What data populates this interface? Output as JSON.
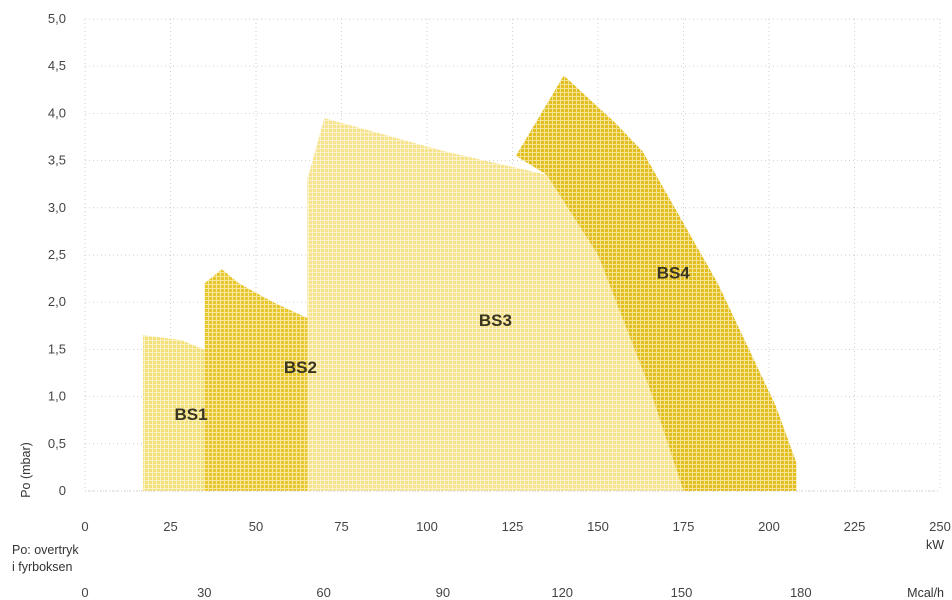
{
  "chart_data": {
    "type": "area",
    "ylabel": "Po (mbar)",
    "x_unit": "kW",
    "x2_unit": "Mcal/h",
    "x_ticks": [
      "0",
      "25",
      "50",
      "75",
      "100",
      "125",
      "150",
      "175",
      "200",
      "225",
      "250"
    ],
    "x2_ticks": [
      "0",
      "30",
      "60",
      "90",
      "120",
      "150",
      "180"
    ],
    "y_ticks": [
      "0",
      "0,5",
      "1,0",
      "1,5",
      "2,0",
      "2,5",
      "3,0",
      "3,5",
      "4,0",
      "4,5",
      "5,0"
    ],
    "xlim": [
      0,
      250
    ],
    "ylim": [
      0,
      5.0
    ],
    "note_line1": "Po: overtryk",
    "note_line2": "i fyrboksen",
    "grid": true,
    "series": [
      {
        "name": "BS1",
        "color": "#f4e07a",
        "points": [
          [
            17,
            0
          ],
          [
            17,
            1.65
          ],
          [
            28,
            1.6
          ],
          [
            38,
            1.45
          ],
          [
            43,
            1.0
          ],
          [
            48,
            0.35
          ],
          [
            50,
            0
          ]
        ]
      },
      {
        "name": "BS2",
        "color": "#e8c72c",
        "points": [
          [
            35,
            0
          ],
          [
            35,
            2.2
          ],
          [
            40,
            2.35
          ],
          [
            45,
            2.2
          ],
          [
            55,
            2.0
          ],
          [
            67,
            1.8
          ],
          [
            72,
            1.3
          ],
          [
            78,
            0.5
          ],
          [
            80,
            0
          ]
        ]
      },
      {
        "name": "BS3",
        "color": "#f6e38e",
        "points": [
          [
            65,
            0
          ],
          [
            65,
            3.3
          ],
          [
            70,
            3.95
          ],
          [
            80,
            3.85
          ],
          [
            105,
            3.6
          ],
          [
            135,
            3.35
          ],
          [
            150,
            2.5
          ],
          [
            165,
            1.1
          ],
          [
            175,
            0
          ]
        ]
      },
      {
        "name": "BS4",
        "color": "#e3bf1e",
        "points": [
          [
            126,
            3.55
          ],
          [
            140,
            4.4
          ],
          [
            155,
            3.9
          ],
          [
            163,
            3.6
          ],
          [
            185,
            2.2
          ],
          [
            202,
            0.9
          ],
          [
            208,
            0.3
          ],
          [
            208,
            0
          ],
          [
            175,
            0
          ],
          [
            165,
            1.1
          ],
          [
            150,
            2.5
          ],
          [
            135,
            3.35
          ]
        ]
      }
    ],
    "labels": [
      {
        "text": "BS1",
        "x": 31,
        "y": 0.75
      },
      {
        "text": "BS2",
        "x": 63,
        "y": 1.25
      },
      {
        "text": "BS3",
        "x": 120,
        "y": 1.75
      },
      {
        "text": "BS4",
        "x": 172,
        "y": 2.25
      }
    ]
  }
}
